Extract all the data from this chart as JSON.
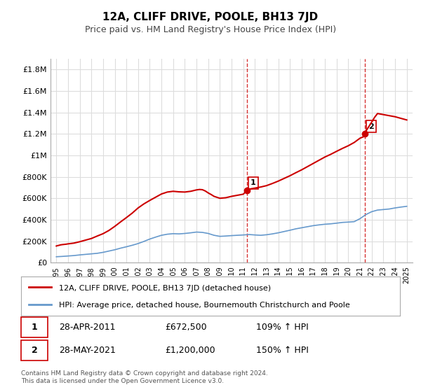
{
  "title": "12A, CLIFF DRIVE, POOLE, BH13 7JD",
  "subtitle": "Price paid vs. HM Land Registry's House Price Index (HPI)",
  "hpi_label": "HPI: Average price, detached house, Bournemouth Christchurch and Poole",
  "property_label": "12A, CLIFF DRIVE, POOLE, BH13 7JD (detached house)",
  "sale1_label": "1",
  "sale1_date": "28-APR-2011",
  "sale1_price": "£672,500",
  "sale1_hpi": "109% ↑ HPI",
  "sale2_label": "2",
  "sale2_date": "28-MAY-2021",
  "sale2_price": "£1,200,000",
  "sale2_hpi": "150% ↑ HPI",
  "footnote": "Contains HM Land Registry data © Crown copyright and database right 2024.\nThis data is licensed under the Open Government Licence v3.0.",
  "property_color": "#cc0000",
  "hpi_color": "#6699cc",
  "vline_color": "#cc0000",
  "background_color": "#ffffff",
  "grid_color": "#dddddd",
  "ylim": [
    0,
    1900000
  ],
  "yticks": [
    0,
    200000,
    400000,
    600000,
    800000,
    1000000,
    1200000,
    1400000,
    1600000,
    1800000
  ],
  "ytick_labels": [
    "£0",
    "£200K",
    "£400K",
    "£600K",
    "£800K",
    "£1M",
    "£1.2M",
    "£1.4M",
    "£1.6M",
    "£1.8M"
  ],
  "xlim_start": 1994.5,
  "xlim_end": 2025.5,
  "sale1_x": 2011.33,
  "sale1_y": 672500,
  "sale2_x": 2021.42,
  "sale2_y": 1200000,
  "hpi_years": [
    1995,
    1995.5,
    1996,
    1996.5,
    1997,
    1997.5,
    1998,
    1998.5,
    1999,
    1999.5,
    2000,
    2000.5,
    2001,
    2001.5,
    2002,
    2002.5,
    2003,
    2003.5,
    2004,
    2004.5,
    2005,
    2005.5,
    2006,
    2006.5,
    2007,
    2007.5,
    2008,
    2008.5,
    2009,
    2009.5,
    2010,
    2010.5,
    2011,
    2011.5,
    2012,
    2012.5,
    2013,
    2013.5,
    2014,
    2014.5,
    2015,
    2015.5,
    2016,
    2016.5,
    2017,
    2017.5,
    2018,
    2018.5,
    2019,
    2019.5,
    2020,
    2020.5,
    2021,
    2021.5,
    2022,
    2022.5,
    2023,
    2023.5,
    2024,
    2024.5,
    2025
  ],
  "hpi_values": [
    55000,
    58000,
    62000,
    66000,
    72000,
    77000,
    82000,
    87000,
    96000,
    108000,
    120000,
    135000,
    148000,
    162000,
    178000,
    198000,
    220000,
    238000,
    255000,
    265000,
    270000,
    268000,
    272000,
    278000,
    285000,
    282000,
    272000,
    255000,
    245000,
    248000,
    252000,
    255000,
    258000,
    262000,
    258000,
    255000,
    260000,
    268000,
    278000,
    290000,
    302000,
    315000,
    325000,
    335000,
    345000,
    352000,
    358000,
    362000,
    368000,
    375000,
    378000,
    382000,
    410000,
    448000,
    475000,
    490000,
    495000,
    500000,
    510000,
    518000,
    525000
  ],
  "property_years": [
    1995,
    1995.08,
    1995.17,
    1995.25,
    1995.33,
    1995.5,
    1995.67,
    1995.83,
    1996,
    1996.5,
    1997,
    1997.5,
    1998,
    1998.5,
    1999,
    1999.5,
    2000,
    2000.5,
    2001,
    2001.5,
    2002,
    2002.5,
    2003,
    2003.5,
    2004,
    2004.5,
    2005,
    2005.5,
    2006,
    2006.5,
    2007,
    2007.25,
    2007.5,
    2007.75,
    2008,
    2008.25,
    2008.5,
    2009,
    2009.5,
    2010,
    2010.5,
    2011,
    2011.33,
    2011.5,
    2012,
    2012.5,
    2013,
    2013.5,
    2014,
    2014.5,
    2015,
    2015.5,
    2016,
    2016.5,
    2017,
    2017.5,
    2018,
    2018.5,
    2019,
    2019.5,
    2020,
    2020.5,
    2021,
    2021.33,
    2021.42,
    2021.5,
    2022,
    2022.25,
    2022.5,
    2023,
    2023.5,
    2024,
    2024.5,
    2025
  ],
  "property_values": [
    155000,
    158000,
    160000,
    162000,
    165000,
    168000,
    170000,
    172000,
    175000,
    182000,
    195000,
    210000,
    225000,
    248000,
    270000,
    300000,
    338000,
    380000,
    420000,
    462000,
    510000,
    548000,
    580000,
    610000,
    640000,
    658000,
    665000,
    660000,
    658000,
    665000,
    678000,
    682000,
    680000,
    668000,
    650000,
    635000,
    618000,
    600000,
    605000,
    618000,
    628000,
    638000,
    672500,
    685000,
    695000,
    705000,
    718000,
    738000,
    760000,
    785000,
    810000,
    838000,
    865000,
    895000,
    925000,
    955000,
    985000,
    1010000,
    1038000,
    1065000,
    1090000,
    1120000,
    1160000,
    1175000,
    1200000,
    1225000,
    1310000,
    1355000,
    1390000,
    1380000,
    1370000,
    1360000,
    1345000,
    1330000
  ]
}
